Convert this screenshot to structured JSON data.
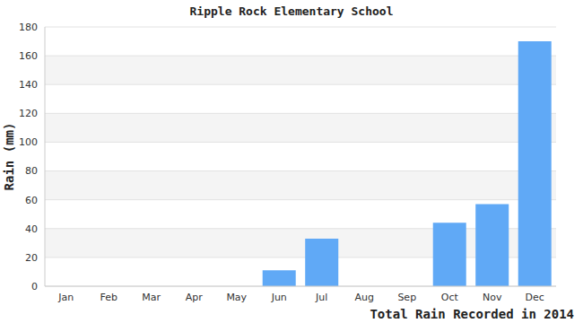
{
  "chart_data": {
    "type": "bar",
    "title": "Ripple Rock Elementary School",
    "x_label": "Total Rain Recorded in 2014",
    "y_label": "Rain (mm)",
    "categories": [
      "Jan",
      "Feb",
      "Mar",
      "Apr",
      "May",
      "Jun",
      "Jul",
      "Aug",
      "Sep",
      "Oct",
      "Nov",
      "Dec"
    ],
    "values": [
      0,
      0,
      0,
      0,
      0,
      11,
      33,
      0,
      0,
      44,
      57,
      170
    ],
    "color": "#60a9f6",
    "ylim": [
      0,
      180
    ],
    "yticks": [
      0,
      20,
      40,
      60,
      80,
      100,
      120,
      140,
      160,
      180
    ],
    "grid": true
  }
}
